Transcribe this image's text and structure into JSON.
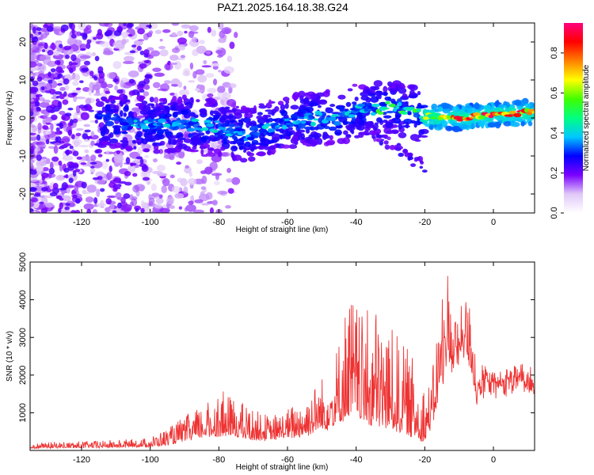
{
  "title": "PAZ1.2025.164.18.38.G24",
  "chart_data": [
    {
      "type": "heatmap",
      "name": "spectrogram",
      "xlabel": "Height of straight line (km)",
      "ylabel": "Frequency (Hz)",
      "xlim": [
        -135,
        12
      ],
      "ylim": [
        -25,
        25
      ],
      "xticks": [
        -120,
        -100,
        -80,
        -60,
        -40,
        -20,
        0
      ],
      "yticks": [
        -20,
        -10,
        0,
        10,
        20
      ],
      "colorbar": {
        "label": "Normalized spectral amplitude",
        "range": [
          0,
          0.95
        ],
        "ticks": [
          0.0,
          0.2,
          0.4,
          0.6,
          0.8
        ],
        "colormap": [
          "#ffffff",
          "#e0c8f8",
          "#7a00ff",
          "#0000ff",
          "#00c8ff",
          "#00ff80",
          "#40ff00",
          "#ffff00",
          "#ff8000",
          "#ff0000",
          "#ff0080"
        ]
      },
      "ridge": {
        "x": [
          -110,
          -100,
          -90,
          -80,
          -72,
          -65,
          -60,
          -50,
          -45,
          -40,
          -30,
          -20,
          -10,
          0,
          12
        ],
        "freq": [
          -1,
          -2,
          -1.5,
          -2.5,
          -4.5,
          -2.5,
          -1,
          0,
          0,
          2,
          3,
          0.5,
          0,
          1,
          1.5
        ]
      }
    },
    {
      "type": "line",
      "name": "snr",
      "xlabel": "Height of straight line (km)",
      "ylabel": "SNR (10 * v/v)",
      "xlim": [
        -135,
        12
      ],
      "ylim": [
        0,
        5000
      ],
      "xticks": [
        -120,
        -100,
        -80,
        -60,
        -40,
        -20,
        0
      ],
      "yticks": [
        1000,
        2000,
        3000,
        4000,
        5000
      ],
      "color": "#ee3333",
      "envelope": {
        "x": [
          -135,
          -120,
          -110,
          -100,
          -95,
          -90,
          -85,
          -80,
          -75,
          -70,
          -65,
          -60,
          -55,
          -50,
          -45,
          -42,
          -40,
          -38,
          -35,
          -30,
          -25,
          -22,
          -20,
          -18,
          -16,
          -14,
          -13,
          -12,
          -10,
          -8,
          -6,
          -5,
          -4,
          -3,
          -2,
          0,
          3,
          6,
          9,
          12
        ],
        "base": [
          60,
          70,
          80,
          100,
          150,
          250,
          350,
          400,
          380,
          300,
          280,
          350,
          420,
          550,
          700,
          900,
          900,
          800,
          700,
          600,
          450,
          300,
          250,
          700,
          1400,
          2200,
          2500,
          2200,
          2300,
          2800,
          2100,
          1300,
          1500,
          1600,
          1700,
          1600,
          1650,
          1750,
          1650,
          1700
        ],
        "peak": [
          200,
          250,
          280,
          350,
          600,
          900,
          1200,
          1600,
          1400,
          1100,
          900,
          1100,
          1500,
          2000,
          3000,
          4400,
          4000,
          3600,
          3900,
          3300,
          2700,
          2300,
          1800,
          1900,
          3500,
          4900,
          5000,
          3600,
          3700,
          4200,
          3500,
          2700,
          1900,
          2100,
          2300,
          2000,
          2200,
          2300,
          2100,
          2700
        ]
      }
    }
  ]
}
